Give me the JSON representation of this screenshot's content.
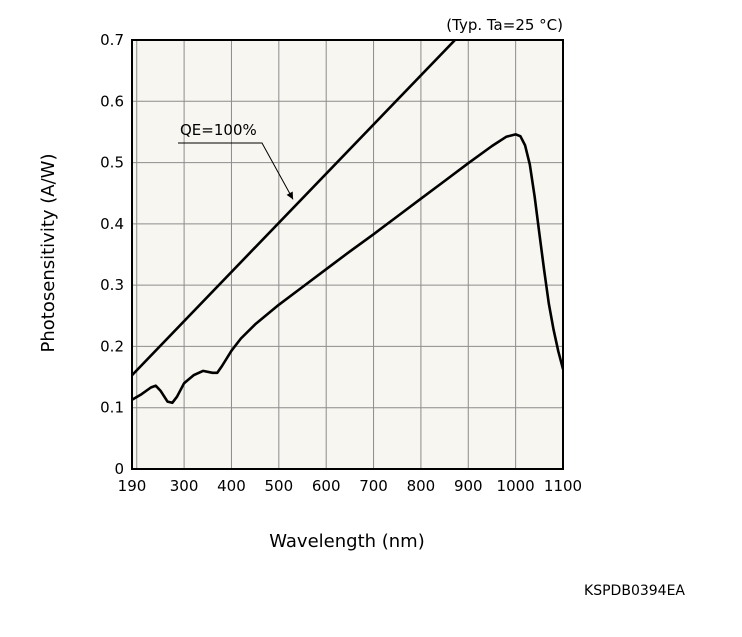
{
  "chart_data": {
    "type": "line",
    "condition_note": "(Typ. Ta=25 °C)",
    "xlabel": "Wavelength (nm)",
    "ylabel": "Photosensitivity (A/W)",
    "xlim": [
      190,
      1100
    ],
    "ylim": [
      0,
      0.7
    ],
    "x_ticks": [
      190,
      300,
      400,
      500,
      600,
      700,
      800,
      900,
      1000,
      1100
    ],
    "x_tick_labels": [
      "190",
      "300",
      "400",
      "500",
      "600",
      "700",
      "800",
      "900",
      "1000",
      "1100"
    ],
    "y_ticks": [
      0,
      0.1,
      0.2,
      0.3,
      0.4,
      0.5,
      0.6,
      0.7
    ],
    "y_tick_labels": [
      "0",
      "0.1",
      "0.2",
      "0.3",
      "0.4",
      "0.5",
      "0.6",
      "0.7"
    ],
    "x_grid_lines": [
      190,
      200,
      300,
      400,
      500,
      600,
      700,
      800,
      900,
      1000,
      1100
    ],
    "grid": true,
    "plot_background": "#f7f6f0",
    "line_color": "#000000",
    "series": [
      {
        "name": "QE=100%",
        "x": [
          190,
          872
        ],
        "y": [
          0.153,
          0.7
        ]
      },
      {
        "name": "",
        "x": [
          190,
          210,
          230,
          240,
          250,
          265,
          275,
          285,
          300,
          320,
          340,
          360,
          370,
          380,
          400,
          420,
          450,
          500,
          550,
          600,
          650,
          700,
          750,
          800,
          850,
          900,
          950,
          980,
          1000,
          1010,
          1020,
          1030,
          1040,
          1050,
          1060,
          1070,
          1080,
          1090,
          1100
        ],
        "y": [
          0.113,
          0.122,
          0.133,
          0.136,
          0.128,
          0.11,
          0.108,
          0.118,
          0.14,
          0.153,
          0.16,
          0.157,
          0.157,
          0.168,
          0.193,
          0.213,
          0.236,
          0.268,
          0.297,
          0.326,
          0.355,
          0.383,
          0.412,
          0.441,
          0.47,
          0.499,
          0.527,
          0.542,
          0.546,
          0.543,
          0.528,
          0.497,
          0.445,
          0.385,
          0.325,
          0.27,
          0.228,
          0.192,
          0.163
        ]
      }
    ],
    "annotation": {
      "text": "QE=100%",
      "label_x": 190,
      "label_y": 0.55,
      "arrow_to": [
        530,
        0.44
      ]
    }
  },
  "footer": {
    "figure_code": "KSPDB0394EA"
  }
}
